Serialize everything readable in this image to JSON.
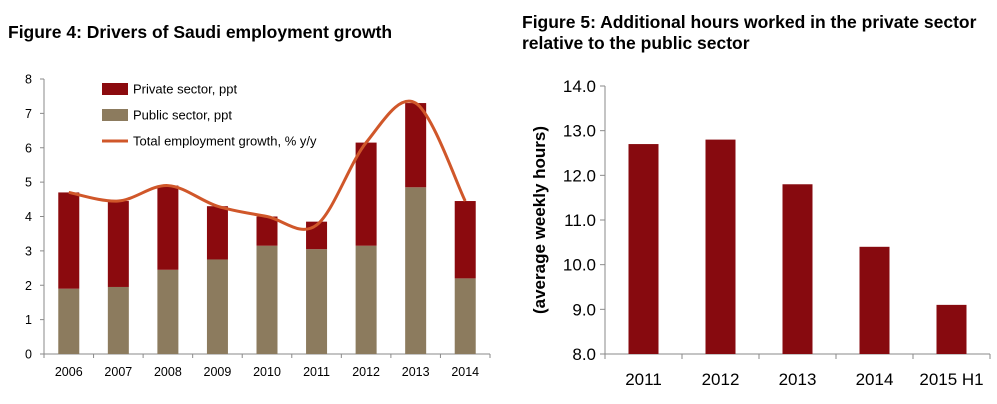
{
  "figure4": {
    "title": "Figure 4: Drivers of Saudi employment growth"
  },
  "figure5": {
    "title": "Figure 5: Additional hours worked in the private sector relative to the public sector"
  },
  "colors": {
    "private": "#8b0a0e",
    "public": "#8c7b5e",
    "total_line": "#d0572a",
    "bar5": "#870a0f",
    "axis": "#8a8a8a"
  },
  "chart_data": [
    {
      "type": "bar",
      "stacked": true,
      "categories": [
        "2006",
        "2007",
        "2008",
        "2009",
        "2010",
        "2011",
        "2012",
        "2013",
        "2014"
      ],
      "series": [
        {
          "name": "Public sector, ppt",
          "kind": "bar",
          "values": [
            1.9,
            1.95,
            2.45,
            2.75,
            3.15,
            3.05,
            3.15,
            4.85,
            2.2
          ]
        },
        {
          "name": "Private sector, ppt",
          "kind": "bar",
          "values": [
            2.8,
            2.5,
            2.45,
            1.55,
            0.85,
            0.8,
            3.0,
            2.45,
            2.25
          ]
        },
        {
          "name": "Total employment growth, % y/y",
          "kind": "line",
          "values": [
            4.7,
            4.45,
            4.9,
            4.3,
            4.0,
            3.75,
            6.15,
            7.3,
            4.45
          ]
        }
      ],
      "legend_order": [
        "Private sector, ppt",
        "Public sector, ppt",
        "Total employment growth, % y/y"
      ],
      "ylim": [
        0,
        8
      ],
      "yticks": [
        "0",
        "1",
        "2",
        "3",
        "4",
        "5",
        "6",
        "7",
        "8"
      ],
      "legend_position": "top-left",
      "grid": false
    },
    {
      "type": "bar",
      "categories": [
        "2011",
        "2012",
        "2013",
        "2014",
        "2015 H1"
      ],
      "values": [
        12.7,
        12.8,
        11.8,
        10.4,
        9.1
      ],
      "ylabel": "(average weekly hours)",
      "ylim": [
        8,
        14
      ],
      "yticks": [
        "8.0",
        "9.0",
        "10.0",
        "11.0",
        "12.0",
        "13.0",
        "14.0"
      ],
      "grid": false
    }
  ]
}
